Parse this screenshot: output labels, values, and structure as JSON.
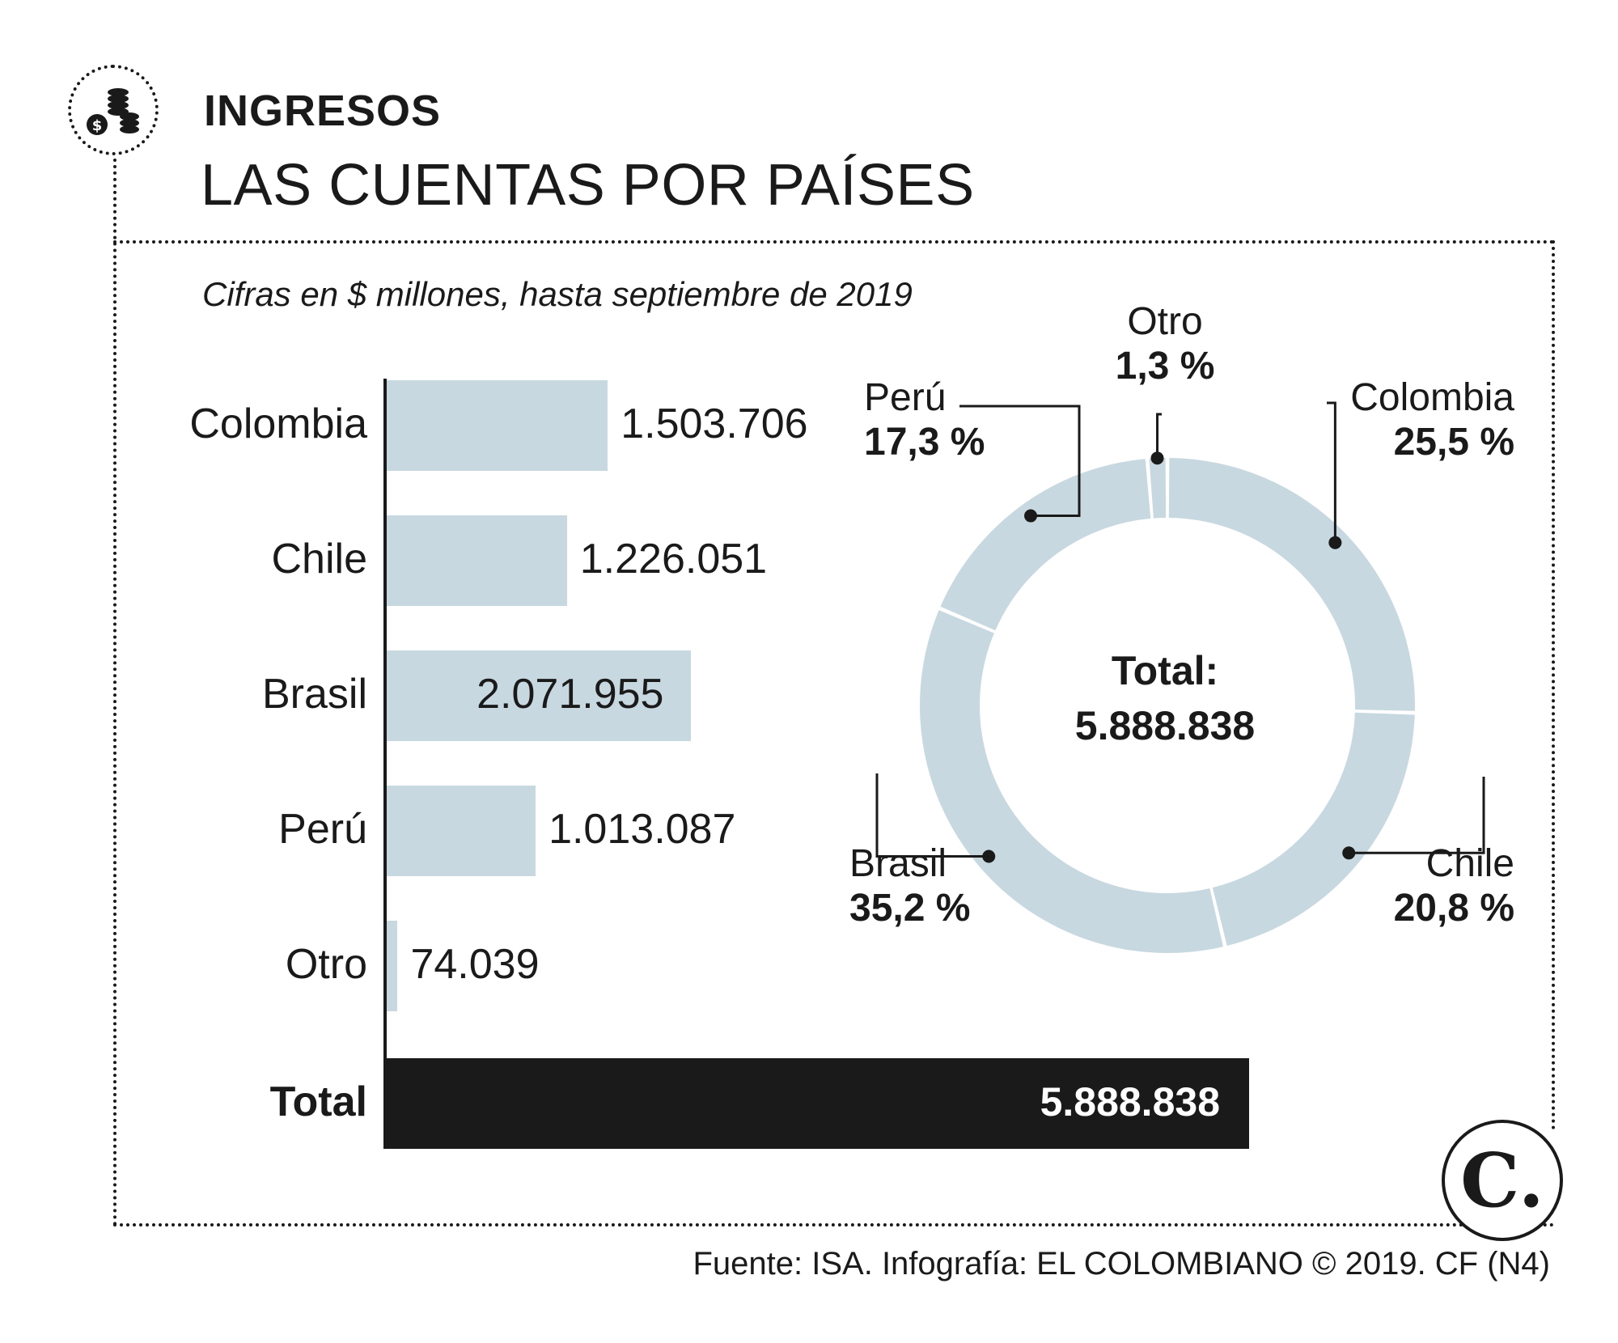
{
  "header": {
    "kicker": "INGRESOS",
    "title": "LAS CUENTAS POR PAÍSES",
    "subtitle": "Cifras en $ millones, hasta septiembre de 2019"
  },
  "footer": {
    "source": "Fuente: ISA. Infografía: EL COLOMBIANO © 2019. CF (N4)",
    "logo_letter": "C."
  },
  "icons": {
    "header_icon": "coins-icon",
    "logo_icon": "el-colombiano-logo"
  },
  "colors": {
    "bar": "#c8d8e1",
    "total": "#1a1a1a",
    "text": "#1a1a1a"
  },
  "chart_data": [
    {
      "type": "bar",
      "orientation": "horizontal",
      "categories": [
        "Colombia",
        "Chile",
        "Brasil",
        "Perú",
        "Otro"
      ],
      "values": [
        1503706,
        1226051,
        2071955,
        1013087,
        74039
      ],
      "value_labels": [
        "1.503.706",
        "1.226.051",
        "2.071.955",
        "1.013.087",
        "74.039"
      ],
      "total": {
        "label": "Total",
        "value": 5888838,
        "value_label": "5.888.838"
      }
    },
    {
      "type": "pie",
      "style": "donut",
      "slices": [
        {
          "name": "Colombia",
          "value": 25.5,
          "label": "25,5 %"
        },
        {
          "name": "Chile",
          "value": 20.8,
          "label": "20,8 %"
        },
        {
          "name": "Brasil",
          "value": 35.2,
          "label": "35,2 %"
        },
        {
          "name": "Perú",
          "value": 17.3,
          "label": "17,3 %"
        },
        {
          "name": "Otro",
          "value": 1.3,
          "label": "1,3 %"
        }
      ],
      "center_title": "Total:",
      "center_value": "5.888.838"
    }
  ]
}
